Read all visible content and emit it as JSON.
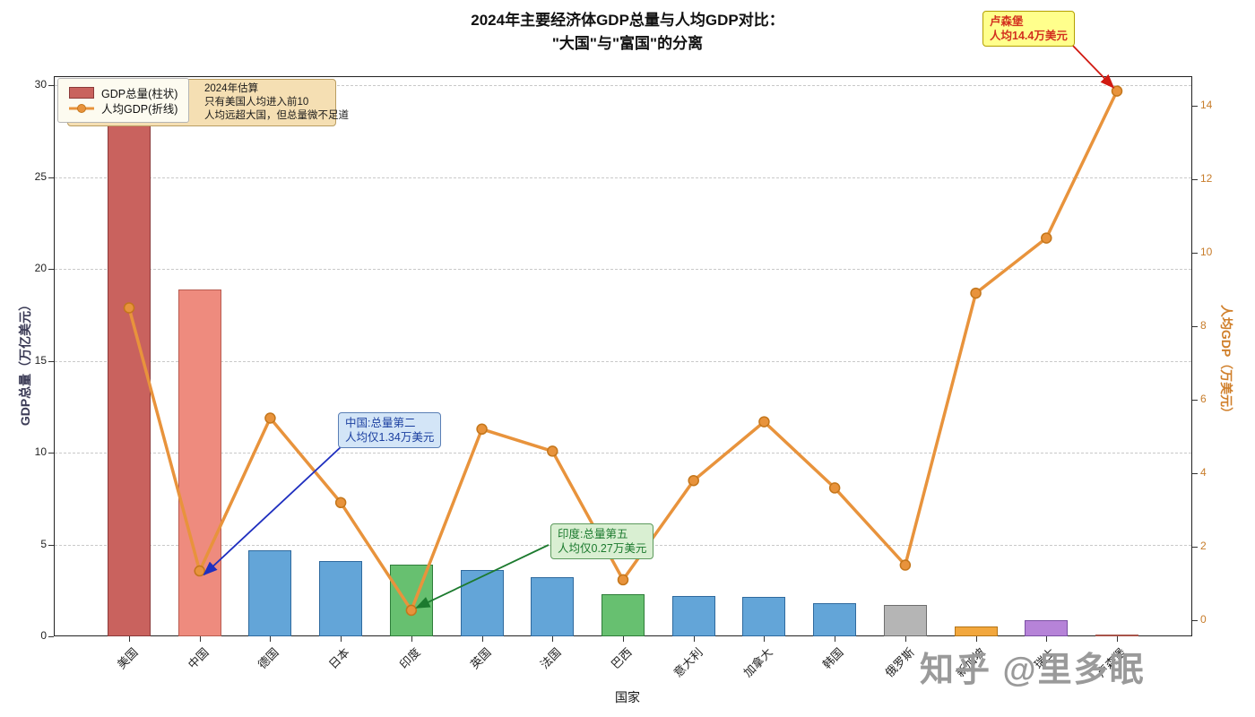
{
  "title": {
    "line1": "2024年主要经济体GDP总量与人均GDP对比：",
    "line2": "\"大国\"与\"富国\"的分离"
  },
  "legend": {
    "bar_label": "GDP总量(柱状)",
    "line_label": "人均GDP(折线)"
  },
  "note": {
    "line1": "2024年估算",
    "line2": "只有美国人均进入前10",
    "line3": "人均远超大国，但总量微不足道"
  },
  "axes": {
    "y_left_label": "GDP总量（万亿美元）",
    "y_right_label": "人均GDP（万美元）",
    "x_label": "国家",
    "y_left_ticks": [
      0,
      5,
      10,
      15,
      20,
      25,
      30
    ],
    "y_right_ticks": [
      0,
      2,
      4,
      6,
      8,
      10,
      12,
      14
    ]
  },
  "chart_data": {
    "type": "bar+line",
    "title": "2024年主要经济体GDP总量与人均GDP对比：\"大国\"与\"富国\"的分离",
    "xlabel": "国家",
    "ylabel_left": "GDP总量（万亿美元）",
    "ylabel_right": "人均GDP（万美元）",
    "ylim_left": [
      0,
      30.5
    ],
    "ylim_right": [
      0,
      14.8
    ],
    "grid": "dashed-horizontal",
    "legend_position": "upper-left",
    "categories": [
      "美国",
      "中国",
      "德国",
      "日本",
      "印度",
      "英国",
      "法国",
      "巴西",
      "意大利",
      "加拿大",
      "韩国",
      "俄罗斯",
      "新加坡",
      "瑞士",
      "卢森堡"
    ],
    "series": [
      {
        "name": "GDP总量(柱状)",
        "type": "bar",
        "axis": "left",
        "values": [
          29.2,
          18.9,
          4.7,
          4.1,
          3.9,
          3.6,
          3.2,
          2.3,
          2.2,
          2.15,
          1.8,
          1.7,
          0.55,
          0.9,
          0.09
        ]
      },
      {
        "name": "人均GDP(折线)",
        "type": "line",
        "axis": "right",
        "values": [
          8.5,
          1.34,
          5.5,
          3.2,
          0.27,
          5.2,
          4.6,
          1.1,
          3.8,
          5.4,
          3.6,
          1.5,
          8.9,
          10.4,
          14.4
        ]
      }
    ],
    "bar_colors": [
      {
        "fill": "#c9625e",
        "edge": "#8b3a3a"
      },
      {
        "fill": "#ee8b7e",
        "edge": "#b85c50"
      },
      {
        "fill": "#63a5d8",
        "edge": "#2f6a9e"
      },
      {
        "fill": "#63a5d8",
        "edge": "#2f6a9e"
      },
      {
        "fill": "#67c070",
        "edge": "#2f7d3a"
      },
      {
        "fill": "#63a5d8",
        "edge": "#2f6a9e"
      },
      {
        "fill": "#63a5d8",
        "edge": "#2f6a9e"
      },
      {
        "fill": "#67c070",
        "edge": "#2f7d3a"
      },
      {
        "fill": "#63a5d8",
        "edge": "#2f6a9e"
      },
      {
        "fill": "#63a5d8",
        "edge": "#2f6a9e"
      },
      {
        "fill": "#63a5d8",
        "edge": "#2f6a9e"
      },
      {
        "fill": "#b5b5b5",
        "edge": "#6e6e6e"
      },
      {
        "fill": "#f2a73d",
        "edge": "#b37417"
      },
      {
        "fill": "#b683d8",
        "edge": "#7a4fa3"
      },
      {
        "fill": "#e78a78",
        "edge": "#a8544a"
      }
    ],
    "line_color": "#e8933c",
    "marker_edge_color": "#c4761b"
  },
  "annotations": {
    "china": {
      "line1": "中国:总量第二",
      "line2": "人均仅1.34万美元",
      "color": "#1b3fa0"
    },
    "india": {
      "line1": "印度:总量第五",
      "line2": "人均仅0.27万美元",
      "color": "#1c7a2e"
    },
    "luxembourg": {
      "line1": "卢森堡",
      "line2": "人均14.4万美元",
      "color": "#d32f1e"
    }
  },
  "watermark": "知乎 @里多眠"
}
